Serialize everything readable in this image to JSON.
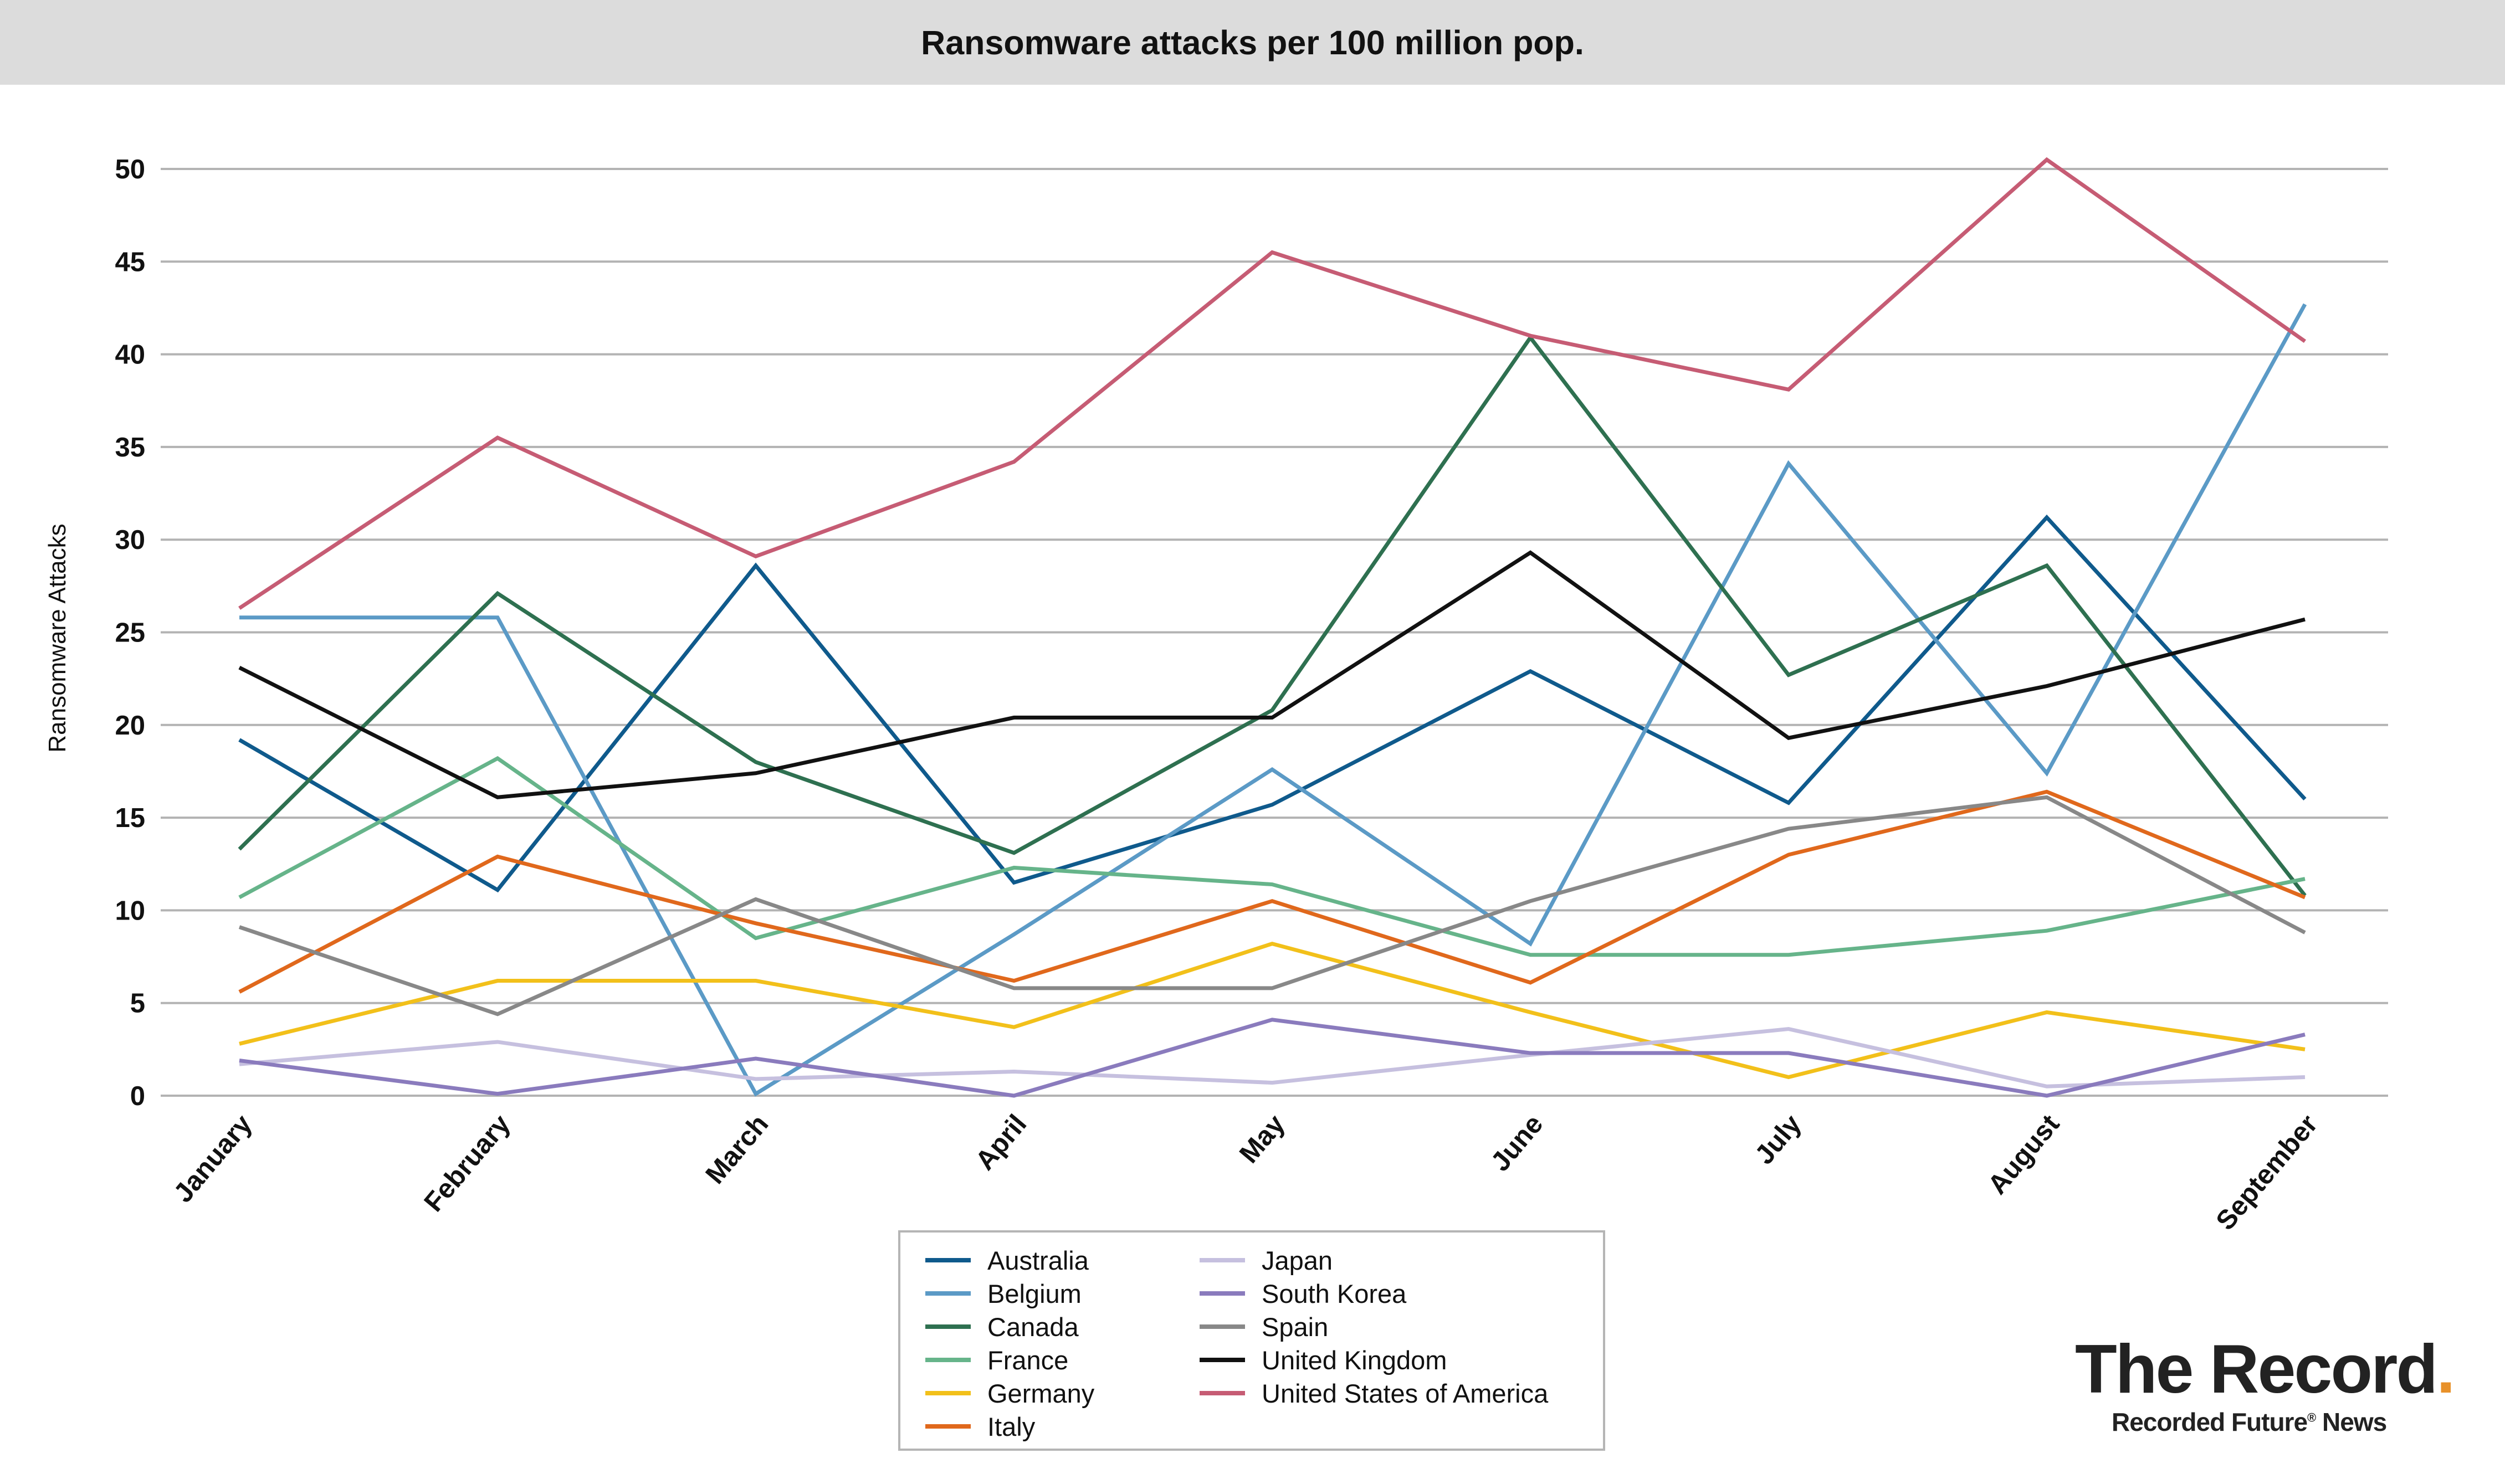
{
  "chart_data": {
    "type": "line",
    "title": "Ransomware attacks per 100 million pop.",
    "xlabel": "",
    "ylabel": "Ransomware Attacks",
    "ylim": [
      0,
      50
    ],
    "yticks": [
      0,
      5,
      10,
      15,
      20,
      25,
      30,
      35,
      40,
      45,
      50
    ],
    "grid": true,
    "legend_position": "bottom-center",
    "categories": [
      "January",
      "February",
      "March",
      "April",
      "May",
      "June",
      "July",
      "August",
      "September"
    ],
    "series": [
      {
        "name": "Australia",
        "color": "#0f5a8c",
        "values": [
          19.2,
          11.1,
          28.6,
          11.5,
          15.7,
          22.9,
          15.8,
          31.2,
          16.0
        ]
      },
      {
        "name": "Belgium",
        "color": "#5b9ac6",
        "values": [
          25.8,
          25.8,
          0.1,
          8.7,
          17.6,
          8.2,
          34.1,
          17.4,
          42.7
        ]
      },
      {
        "name": "Canada",
        "color": "#2e7050",
        "values": [
          13.3,
          27.1,
          18.0,
          13.1,
          20.8,
          40.9,
          22.7,
          28.6,
          10.8
        ]
      },
      {
        "name": "France",
        "color": "#66b48a",
        "values": [
          10.7,
          18.2,
          8.5,
          12.3,
          11.4,
          7.6,
          7.6,
          8.9,
          11.7
        ]
      },
      {
        "name": "Germany",
        "color": "#f2c01a",
        "values": [
          2.8,
          6.2,
          6.2,
          3.7,
          8.2,
          4.5,
          1.0,
          4.5,
          2.5
        ]
      },
      {
        "name": "Italy",
        "color": "#e0681c",
        "values": [
          5.6,
          12.9,
          9.3,
          6.2,
          10.5,
          6.1,
          13.0,
          16.4,
          10.7
        ]
      },
      {
        "name": "Japan",
        "color": "#c6c0df",
        "values": [
          1.7,
          2.9,
          0.9,
          1.3,
          0.7,
          2.2,
          3.6,
          0.5,
          1.0
        ]
      },
      {
        "name": "South Korea",
        "color": "#8a7bbd",
        "values": [
          1.9,
          0.1,
          2.0,
          0.0,
          4.1,
          2.3,
          2.3,
          0.0,
          3.3
        ]
      },
      {
        "name": "Spain",
        "color": "#888888",
        "values": [
          9.1,
          4.4,
          10.6,
          5.8,
          5.8,
          10.5,
          14.4,
          16.1,
          8.8
        ]
      },
      {
        "name": "United Kingdom",
        "color": "#111111",
        "values": [
          23.1,
          16.1,
          17.4,
          20.4,
          20.4,
          29.3,
          19.3,
          22.1,
          25.7
        ]
      },
      {
        "name": "United States of America",
        "color": "#c65c74",
        "values": [
          26.3,
          35.5,
          29.1,
          34.2,
          45.5,
          41.0,
          38.1,
          50.5,
          40.7
        ]
      }
    ]
  },
  "branding": {
    "title": "The Record",
    "title_dot": ".",
    "subtitle_prefix": "Recorded Future",
    "subtitle_mark": "®",
    "subtitle_suffix": " News"
  }
}
